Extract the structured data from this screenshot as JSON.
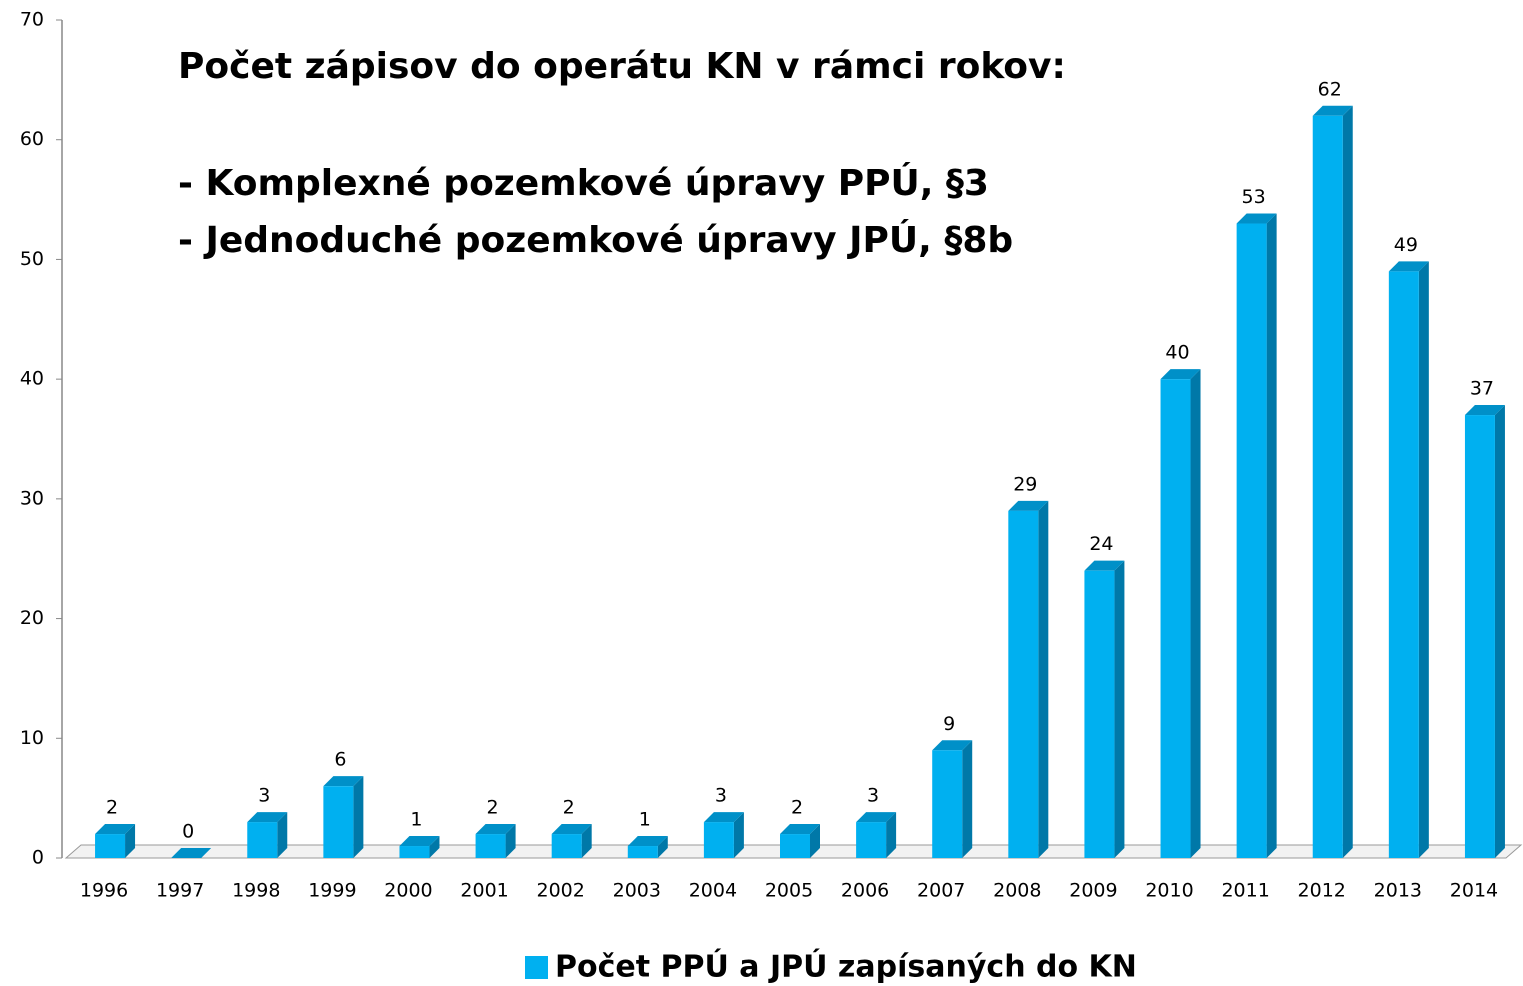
{
  "chart_data": {
    "type": "bar",
    "annotations": [
      "Počet zápisov do operátu KN v rámci rokov:",
      "-  Komplexné pozemkové úpravy PPÚ, §3",
      "-  Jednoduché pozemkové úpravy JPÚ, §8b"
    ],
    "categories": [
      "1996",
      "1997",
      "1998",
      "1999",
      "2000",
      "2001",
      "2002",
      "2003",
      "2004",
      "2005",
      "2006",
      "2007",
      "2008",
      "2009",
      "2010",
      "2011",
      "2012",
      "2013",
      "2014"
    ],
    "series": [
      {
        "name": "Počet PPÚ a JPÚ zapísaných do KN",
        "color": "#00b0f0",
        "values": [
          2,
          0,
          3,
          6,
          1,
          2,
          2,
          1,
          3,
          2,
          3,
          9,
          29,
          24,
          40,
          53,
          62,
          49,
          37
        ]
      }
    ],
    "ylim": [
      0,
      70
    ],
    "yticks": [
      0,
      10,
      20,
      30,
      40,
      50,
      60,
      70
    ],
    "legend": "bottom"
  }
}
